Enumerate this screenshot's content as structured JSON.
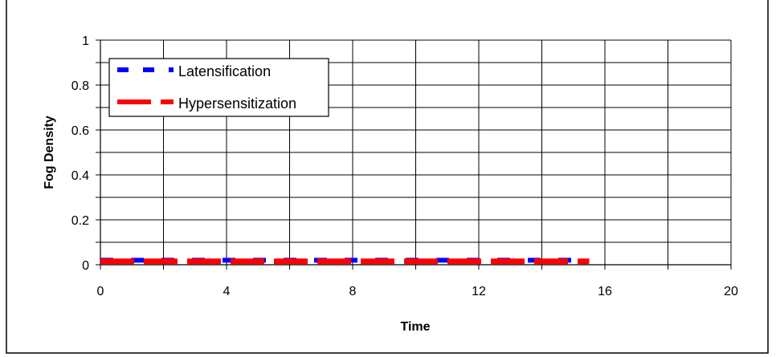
{
  "chart_data": {
    "type": "line",
    "title": "",
    "xlabel": "Time",
    "ylabel": "Fog Density",
    "xlim": [
      0,
      20
    ],
    "ylim": [
      0,
      1
    ],
    "xticks": [
      "0",
      "4",
      "8",
      "12",
      "16",
      "20"
    ],
    "yticks": [
      "0",
      "0.2",
      "0.4",
      "0.6",
      "0.8",
      "1"
    ],
    "grid": true,
    "legend_position": "top-left",
    "series": [
      {
        "name": "Latensification",
        "color": "#0000ff",
        "style": "dashed",
        "x": [
          0,
          2,
          4,
          6,
          8,
          10,
          12,
          14,
          15.5
        ],
        "y": [
          0.02,
          0.02,
          0.02,
          0.02,
          0.02,
          0.02,
          0.02,
          0.02,
          0.02
        ]
      },
      {
        "name": "Hypersensitization",
        "color": "#ff0000",
        "style": "dashed",
        "x": [
          0,
          2,
          4,
          6,
          8,
          10,
          12,
          14,
          15.5
        ],
        "y": [
          0.015,
          0.015,
          0.015,
          0.015,
          0.015,
          0.015,
          0.015,
          0.015,
          0.015
        ]
      }
    ]
  }
}
